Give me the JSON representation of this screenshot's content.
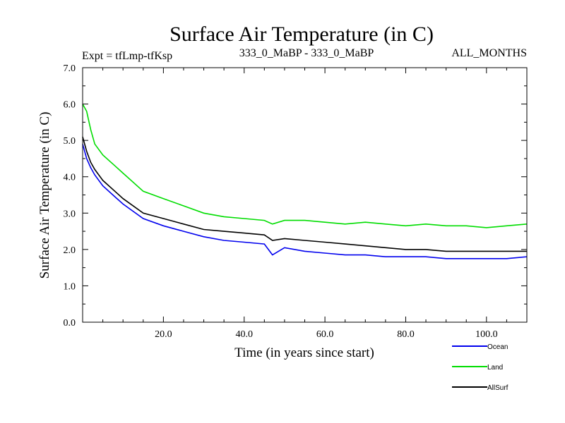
{
  "chart_data": {
    "type": "line",
    "title": "Surface Air Temperature (in C)",
    "subtitle_left": "Expt = tfLmp-tfKsp",
    "subtitle_center": "333_0_MaBP - 333_0_MaBP",
    "subtitle_right": "ALL_MONTHS",
    "xlabel": "Time (in years since start)",
    "ylabel": "Surface Air Temperature (in C)",
    "xlim": [
      0,
      110
    ],
    "ylim": [
      0,
      7
    ],
    "xticks": [
      20,
      40,
      60,
      80,
      100
    ],
    "xtick_labels": [
      "20.0",
      "40.0",
      "60.0",
      "80.0",
      "100.0"
    ],
    "yticks": [
      0,
      1,
      2,
      3,
      4,
      5,
      6,
      7
    ],
    "ytick_labels": [
      "0.0",
      "1.0",
      "2.0",
      "3.0",
      "4.0",
      "5.0",
      "6.0",
      "7.0"
    ],
    "x": [
      0,
      1,
      2,
      3,
      5,
      8,
      10,
      15,
      20,
      25,
      30,
      35,
      40,
      45,
      47,
      50,
      55,
      60,
      65,
      70,
      75,
      80,
      85,
      90,
      95,
      100,
      105,
      110
    ],
    "series": [
      {
        "name": "Land",
        "color": "#00dd00",
        "values": [
          6.0,
          5.8,
          5.3,
          4.9,
          4.6,
          4.3,
          4.1,
          3.6,
          3.4,
          3.2,
          3.0,
          2.9,
          2.85,
          2.8,
          2.7,
          2.8,
          2.8,
          2.75,
          2.7,
          2.75,
          2.7,
          2.65,
          2.7,
          2.65,
          2.65,
          2.6,
          2.65,
          2.7
        ]
      },
      {
        "name": "AllSurf",
        "color": "#000000",
        "values": [
          5.1,
          4.7,
          4.4,
          4.2,
          3.9,
          3.6,
          3.4,
          3.0,
          2.85,
          2.7,
          2.55,
          2.5,
          2.45,
          2.4,
          2.25,
          2.3,
          2.25,
          2.2,
          2.15,
          2.1,
          2.05,
          2.0,
          2.0,
          1.95,
          1.95,
          1.95,
          1.95,
          1.95
        ]
      },
      {
        "name": "Ocean",
        "color": "#0000ee",
        "values": [
          4.9,
          4.5,
          4.25,
          4.05,
          3.75,
          3.45,
          3.25,
          2.85,
          2.65,
          2.5,
          2.35,
          2.25,
          2.2,
          2.15,
          1.85,
          2.05,
          1.95,
          1.9,
          1.85,
          1.85,
          1.8,
          1.8,
          1.8,
          1.75,
          1.75,
          1.75,
          1.75,
          1.8
        ]
      }
    ],
    "legend": [
      "Ocean",
      "Land",
      "AllSurf"
    ],
    "legend_position": "bottom-right"
  }
}
